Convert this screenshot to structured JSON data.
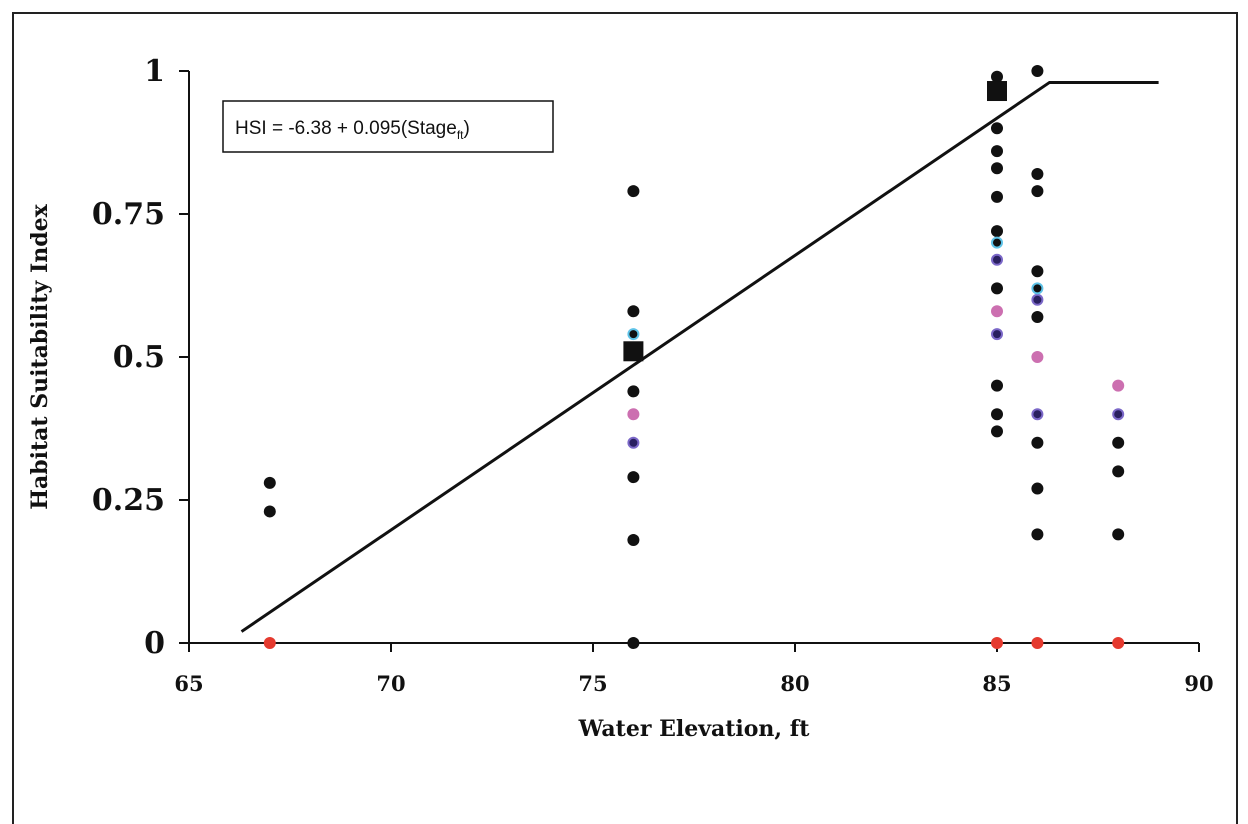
{
  "chart_data": {
    "type": "scatter",
    "title": "",
    "xlabel": "Water Elevation, ft",
    "ylabel": "Habitat Suitability Index",
    "xlim": [
      65,
      90
    ],
    "ylim": [
      0,
      1
    ],
    "x_ticks": [
      "65",
      "70",
      "75",
      "80",
      "85",
      "90"
    ],
    "y_ticks": [
      "0",
      "0.25",
      "0.5",
      "0.75",
      "1"
    ],
    "x_tick_values": [
      65,
      70,
      75,
      80,
      85,
      90
    ],
    "y_tick_values": [
      0,
      0.25,
      0.5,
      0.75,
      1
    ],
    "grid": false,
    "equation": {
      "main": "HSI = -6.38 + 0.095(Stage",
      "sub": "ft",
      "close": ")"
    },
    "colors": {
      "black": "#111111",
      "red": "#e53a2f",
      "pink": "#cc6fb0",
      "purple_center": "#2a2060",
      "purple_ring": "#7b68c8",
      "cyan_ring": "#5ec3e8"
    },
    "series": [
      {
        "style": "black-dot",
        "points": [
          [
            67,
            0.28
          ],
          [
            67,
            0.23
          ],
          [
            76,
            0.79
          ],
          [
            76,
            0.58
          ],
          [
            76,
            0.51
          ],
          [
            76,
            0.44
          ],
          [
            76,
            0.29
          ],
          [
            76,
            0.18
          ],
          [
            76,
            0.0
          ],
          [
            85,
            0.99
          ],
          [
            85,
            0.9
          ],
          [
            85,
            0.86
          ],
          [
            85,
            0.83
          ],
          [
            85,
            0.78
          ],
          [
            85,
            0.72
          ],
          [
            85,
            0.62
          ],
          [
            85,
            0.45
          ],
          [
            85,
            0.4
          ],
          [
            85,
            0.37
          ],
          [
            86,
            1.0
          ],
          [
            86,
            0.82
          ],
          [
            86,
            0.79
          ],
          [
            86,
            0.65
          ],
          [
            86,
            0.57
          ],
          [
            86,
            0.35
          ],
          [
            86,
            0.27
          ],
          [
            86,
            0.19
          ],
          [
            88,
            0.35
          ],
          [
            88,
            0.3
          ],
          [
            88,
            0.19
          ]
        ]
      },
      {
        "style": "red-dot",
        "points": [
          [
            67,
            0.0
          ],
          [
            85,
            0.0
          ],
          [
            86,
            0.0
          ],
          [
            88,
            0.0
          ]
        ]
      },
      {
        "style": "pink-dot",
        "points": [
          [
            76,
            0.4
          ],
          [
            85,
            0.58
          ],
          [
            86,
            0.5
          ],
          [
            88,
            0.45
          ]
        ]
      },
      {
        "style": "purple-ring-dot",
        "points": [
          [
            76,
            0.35
          ],
          [
            85,
            0.67
          ],
          [
            85,
            0.54
          ],
          [
            86,
            0.6
          ],
          [
            86,
            0.4
          ],
          [
            88,
            0.4
          ]
        ]
      },
      {
        "style": "cyan-ring-dot",
        "points": [
          [
            76,
            0.54
          ],
          [
            85,
            0.7
          ],
          [
            86,
            0.62
          ]
        ]
      },
      {
        "style": "black-square",
        "points": [
          [
            76,
            0.51
          ],
          [
            85,
            0.965
          ]
        ]
      }
    ],
    "fit_line": {
      "points": [
        [
          66.3,
          0.02
        ],
        [
          86.3,
          0.98
        ],
        [
          89,
          0.98
        ]
      ]
    }
  }
}
